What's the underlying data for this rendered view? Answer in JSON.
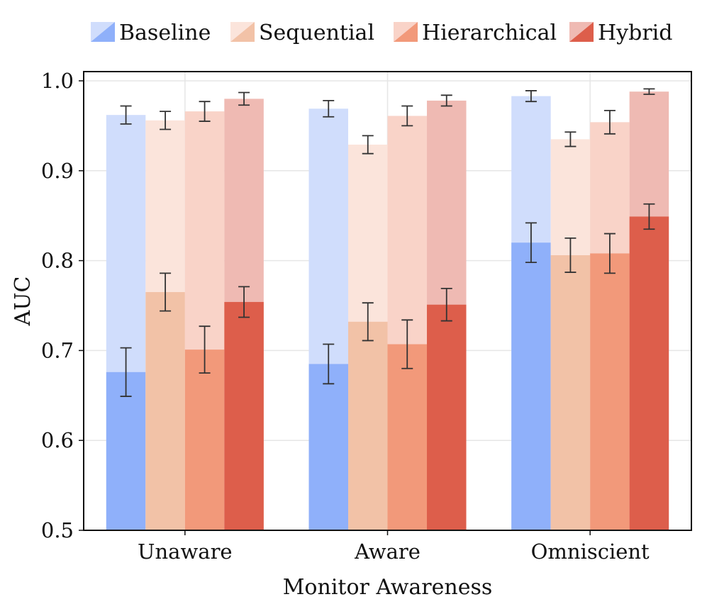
{
  "chart_data": {
    "type": "bar",
    "title": "",
    "xlabel": "Monitor Awareness",
    "ylabel": "AUC",
    "ylim": [
      0.5,
      1.0
    ],
    "yticks": [
      "0.5",
      "0.6",
      "0.7",
      "0.8",
      "0.9",
      "1.0"
    ],
    "grid": true,
    "legend_position": "top",
    "categories": [
      "Unaware",
      "Aware",
      "Omniscient"
    ],
    "series": [
      {
        "name": "Baseline",
        "color": "#8fb0fa",
        "light_color": "#d0ddfc",
        "values": [
          0.676,
          0.685,
          0.82
        ],
        "errors": [
          0.027,
          0.022,
          0.022
        ],
        "upper_values": [
          0.962,
          0.969,
          0.983
        ],
        "upper_errors": [
          0.01,
          0.009,
          0.006
        ]
      },
      {
        "name": "Sequential",
        "color": "#f2c2a7",
        "light_color": "#fbe4db",
        "values": [
          0.765,
          0.732,
          0.806
        ],
        "errors": [
          0.021,
          0.021,
          0.019
        ],
        "upper_values": [
          0.956,
          0.929,
          0.935
        ],
        "upper_errors": [
          0.01,
          0.01,
          0.008
        ]
      },
      {
        "name": "Hierarchical",
        "color": "#f2997a",
        "light_color": "#f9d3c8",
        "values": [
          0.701,
          0.707,
          0.808
        ],
        "errors": [
          0.026,
          0.027,
          0.022
        ],
        "upper_values": [
          0.966,
          0.961,
          0.954
        ],
        "upper_errors": [
          0.011,
          0.011,
          0.013
        ]
      },
      {
        "name": "Hybrid",
        "color": "#dd5e4b",
        "light_color": "#efbab3",
        "values": [
          0.754,
          0.751,
          0.849
        ],
        "errors": [
          0.017,
          0.018,
          0.014
        ],
        "upper_values": [
          0.98,
          0.978,
          0.988
        ],
        "upper_errors": [
          0.007,
          0.006,
          0.003
        ]
      }
    ]
  }
}
